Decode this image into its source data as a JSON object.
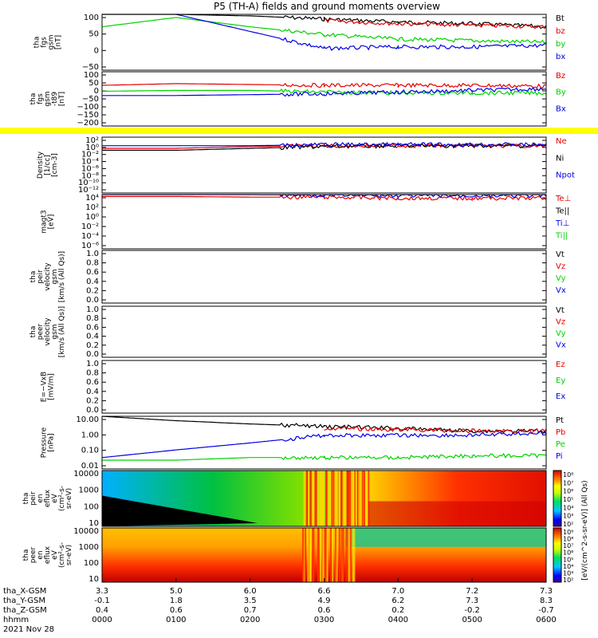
{
  "title": "P5 (TH-A) fields and ground moments overview",
  "colors": {
    "black": "#000000",
    "red": "#e60000",
    "green": "#00d200",
    "blue": "#0000e6",
    "yellow": "#ffff00",
    "spec_bg": "#000000"
  },
  "panels": [
    {
      "id": "fgs",
      "ylabel": [
        "tha",
        "fgs",
        "gsm",
        "[nT]"
      ],
      "yticks": [
        "100",
        "50",
        "0",
        "−50"
      ],
      "legend": [
        {
          "text": "Bt",
          "color": "#000000"
        },
        {
          "text": "bz",
          "color": "#e60000"
        },
        {
          "text": "by",
          "color": "#00d200"
        },
        {
          "text": "bx",
          "color": "#0000e6"
        }
      ]
    },
    {
      "id": "fgs_dsl",
      "ylabel": [
        "tha",
        "fgs",
        "gsm",
        "-t89",
        "[nT]"
      ],
      "yticks": [
        "100",
        "50",
        "0",
        "−50",
        "−100",
        "−150",
        "−200"
      ],
      "legend": [
        {
          "text": "Bz",
          "color": "#e60000"
        },
        {
          "text": "By",
          "color": "#00d200"
        },
        {
          "text": "Bx",
          "color": "#0000e6"
        }
      ]
    },
    {
      "id": "density",
      "ylabel": [
        "Density",
        "[1/cc]",
        "[cm-3]"
      ],
      "yticks": [
        "10²",
        "10⁰",
        "10⁻²",
        "10⁻⁴",
        "10⁻⁶",
        "10⁻⁸",
        "10⁻¹⁰",
        "10⁻¹²"
      ],
      "legend": [
        {
          "text": "Ne",
          "color": "#e60000"
        },
        {
          "text": "Ni",
          "color": "#000000"
        },
        {
          "text": "Npot",
          "color": "#0000e6"
        }
      ]
    },
    {
      "id": "temp",
      "ylabel": [
        "magt3",
        "[eV]"
      ],
      "yticks": [
        "10⁴",
        "10²",
        "10⁰",
        "10⁻²",
        "10⁻⁴",
        "10⁻⁶"
      ],
      "legend": [
        {
          "text": "Te⊥",
          "color": "#e60000"
        },
        {
          "text": "Te||",
          "color": "#000000"
        },
        {
          "text": "Ti⊥",
          "color": "#0000e6"
        },
        {
          "text": "Ti||",
          "color": "#00d200"
        }
      ]
    },
    {
      "id": "peir_vel",
      "ylabel": [
        "tha",
        "peir",
        "velocity",
        "gsm",
        "[km/s (All Qs)]"
      ],
      "yticks": [
        "1.0",
        "0.8",
        "0.6",
        "0.4",
        "0.2",
        "0.0"
      ],
      "legend": [
        {
          "text": "Vt",
          "color": "#000000"
        },
        {
          "text": "Vz",
          "color": "#e60000"
        },
        {
          "text": "Vy",
          "color": "#00d200"
        },
        {
          "text": "Vx",
          "color": "#0000e6"
        }
      ]
    },
    {
      "id": "peer_vel",
      "ylabel": [
        "tha",
        "peer",
        "velocity",
        "gsm",
        "[km/s (All Qs)]"
      ],
      "yticks": [
        "1.0",
        "0.8",
        "0.6",
        "0.4",
        "0.2",
        "0.0"
      ],
      "legend": [
        {
          "text": "Vt",
          "color": "#000000"
        },
        {
          "text": "Vz",
          "color": "#e60000"
        },
        {
          "text": "Vy",
          "color": "#00d200"
        },
        {
          "text": "Vx",
          "color": "#0000e6"
        }
      ]
    },
    {
      "id": "efield",
      "ylabel": [
        "E=−VxB",
        "[mV/m]"
      ],
      "yticks": [
        "1.0",
        "0.8",
        "0.6",
        "0.4",
        "0.2",
        "0.0"
      ],
      "legend": [
        {
          "text": "Ez",
          "color": "#e60000"
        },
        {
          "text": "Ey",
          "color": "#00d200"
        },
        {
          "text": "Ex",
          "color": "#0000e6"
        }
      ]
    },
    {
      "id": "pressure",
      "ylabel": [
        "Pressure",
        "[nPa]"
      ],
      "yticks": [
        "10.00",
        "1.00",
        "0.10",
        "0.01"
      ],
      "legend": [
        {
          "text": "Pt",
          "color": "#000000"
        },
        {
          "text": "Pb",
          "color": "#e60000"
        },
        {
          "text": "Pe",
          "color": "#00d200"
        },
        {
          "text": "Pi",
          "color": "#0000e6"
        }
      ]
    },
    {
      "id": "peir_spec",
      "ylabel": [
        "tha",
        "peir",
        "en",
        "eflux",
        "eV",
        "(cm²-s-",
        "sr-eV)"
      ],
      "yticks": [
        "10000",
        "1000",
        "100",
        "10"
      ],
      "cbar_ticks": [
        "10⁸",
        "10⁷",
        "10⁶",
        "10⁵",
        "10⁴",
        "10³",
        "10²"
      ],
      "cbar_label": "[eV/(cm^2-s-sr-eV)] (All Qs)"
    },
    {
      "id": "peer_spec",
      "ylabel": [
        "tha",
        "peer",
        "en",
        "eflux",
        "eV",
        "(cm²-s-",
        "sr-eV)"
      ],
      "yticks": [
        "10000",
        "1000",
        "100",
        "10"
      ],
      "cbar_ticks": [
        "10⁹",
        "10⁸",
        "10⁷",
        "10⁶",
        "10⁵",
        "10⁴",
        "10³",
        "10²"
      ],
      "cbar_label": "[eV/(cm^2-s-sr-eV)] (All Qs)"
    }
  ],
  "xaxis": {
    "row_labels": [
      "tha_X-GSM",
      "tha_Y-GSM",
      "tha_Z-GSM",
      "hhmm"
    ],
    "columns": [
      [
        "3.3",
        "-0.1",
        "0.4",
        "0000"
      ],
      [
        "5.0",
        "1.8",
        "0.6",
        "0100"
      ],
      [
        "6.0",
        "3.5",
        "0.7",
        "0200"
      ],
      [
        "6.6",
        "4.9",
        "0.6",
        "0300"
      ],
      [
        "7.0",
        "6.2",
        "0.2",
        "0400"
      ],
      [
        "7.2",
        "7.3",
        "-0.2",
        "0500"
      ],
      [
        "7.3",
        "8.3",
        "-0.7",
        "0600"
      ]
    ],
    "date": "2021 Nov 28"
  },
  "chart_data": {
    "type": "line",
    "title": "P5 (TH-A) fields and ground moments overview",
    "x": [
      "0000",
      "0100",
      "0200",
      "0300",
      "0400",
      "0500",
      "0600"
    ],
    "panels": [
      {
        "name": "fgs gsm [nT]",
        "ylim": [
          -80,
          100
        ],
        "series": [
          {
            "name": "Bt",
            "values": [
              100,
              110,
              95,
              85,
              75,
              70,
              60
            ]
          },
          {
            "name": "bz",
            "values": [
              null,
              null,
              null,
              80,
              70,
              65,
              60
            ]
          },
          {
            "name": "by",
            "values": [
              60,
              90,
              60,
              35,
              20,
              15,
              10
            ]
          },
          {
            "name": "bx",
            "values": [
              null,
              100,
              45,
              -10,
              -5,
              -5,
              0
            ]
          }
        ]
      },
      {
        "name": "fgs gsm -t89 [nT]",
        "ylim": [
          -220,
          100
        ],
        "series": [
          {
            "name": "Bz",
            "values": [
              20,
              30,
              25,
              20,
              20,
              20,
              15
            ]
          },
          {
            "name": "By",
            "values": [
              -15,
              -10,
              -10,
              -20,
              -25,
              -25,
              -25
            ]
          },
          {
            "name": "Bx",
            "values": [
              -40,
              -40,
              -35,
              -30,
              -20,
              -10,
              0
            ]
          }
        ]
      },
      {
        "name": "Density [1/cc]",
        "log": true,
        "series": [
          {
            "name": "Ne",
            "values": [
              1,
              1,
              3,
              5,
              5,
              5,
              5
            ]
          },
          {
            "name": "Ni",
            "values": [
              0.3,
              0.3,
              1,
              3,
              5,
              5,
              5
            ]
          },
          {
            "name": "Npot",
            "values": [
              5,
              5,
              5,
              10,
              10,
              10,
              10
            ]
          }
        ]
      },
      {
        "name": "magt3 [eV]",
        "log": true,
        "series": [
          {
            "name": "Te⊥",
            "values": [
              300,
              300,
              200,
              200,
              100,
              100,
              100
            ]
          },
          {
            "name": "Ti⊥",
            "values": [
              1000,
              1000,
              1000,
              800,
              500,
              500,
              500
            ]
          }
        ]
      },
      {
        "name": "Pressure [nPa]",
        "log": true,
        "ylim": [
          0.005,
          20
        ],
        "series": [
          {
            "name": "Pt",
            "values": [
              30,
              10,
              6,
              4,
              3,
              2,
              2
            ]
          },
          {
            "name": "Pb",
            "values": [
              null,
              null,
              null,
              3,
              2.5,
              2,
              2
            ]
          },
          {
            "name": "Pe",
            "values": [
              0.02,
              0.02,
              0.03,
              0.03,
              0.03,
              0.04,
              0.04
            ]
          },
          {
            "name": "Pi",
            "values": [
              0.03,
              0.1,
              0.3,
              1,
              1,
              1,
              1.5
            ]
          }
        ]
      }
    ]
  }
}
